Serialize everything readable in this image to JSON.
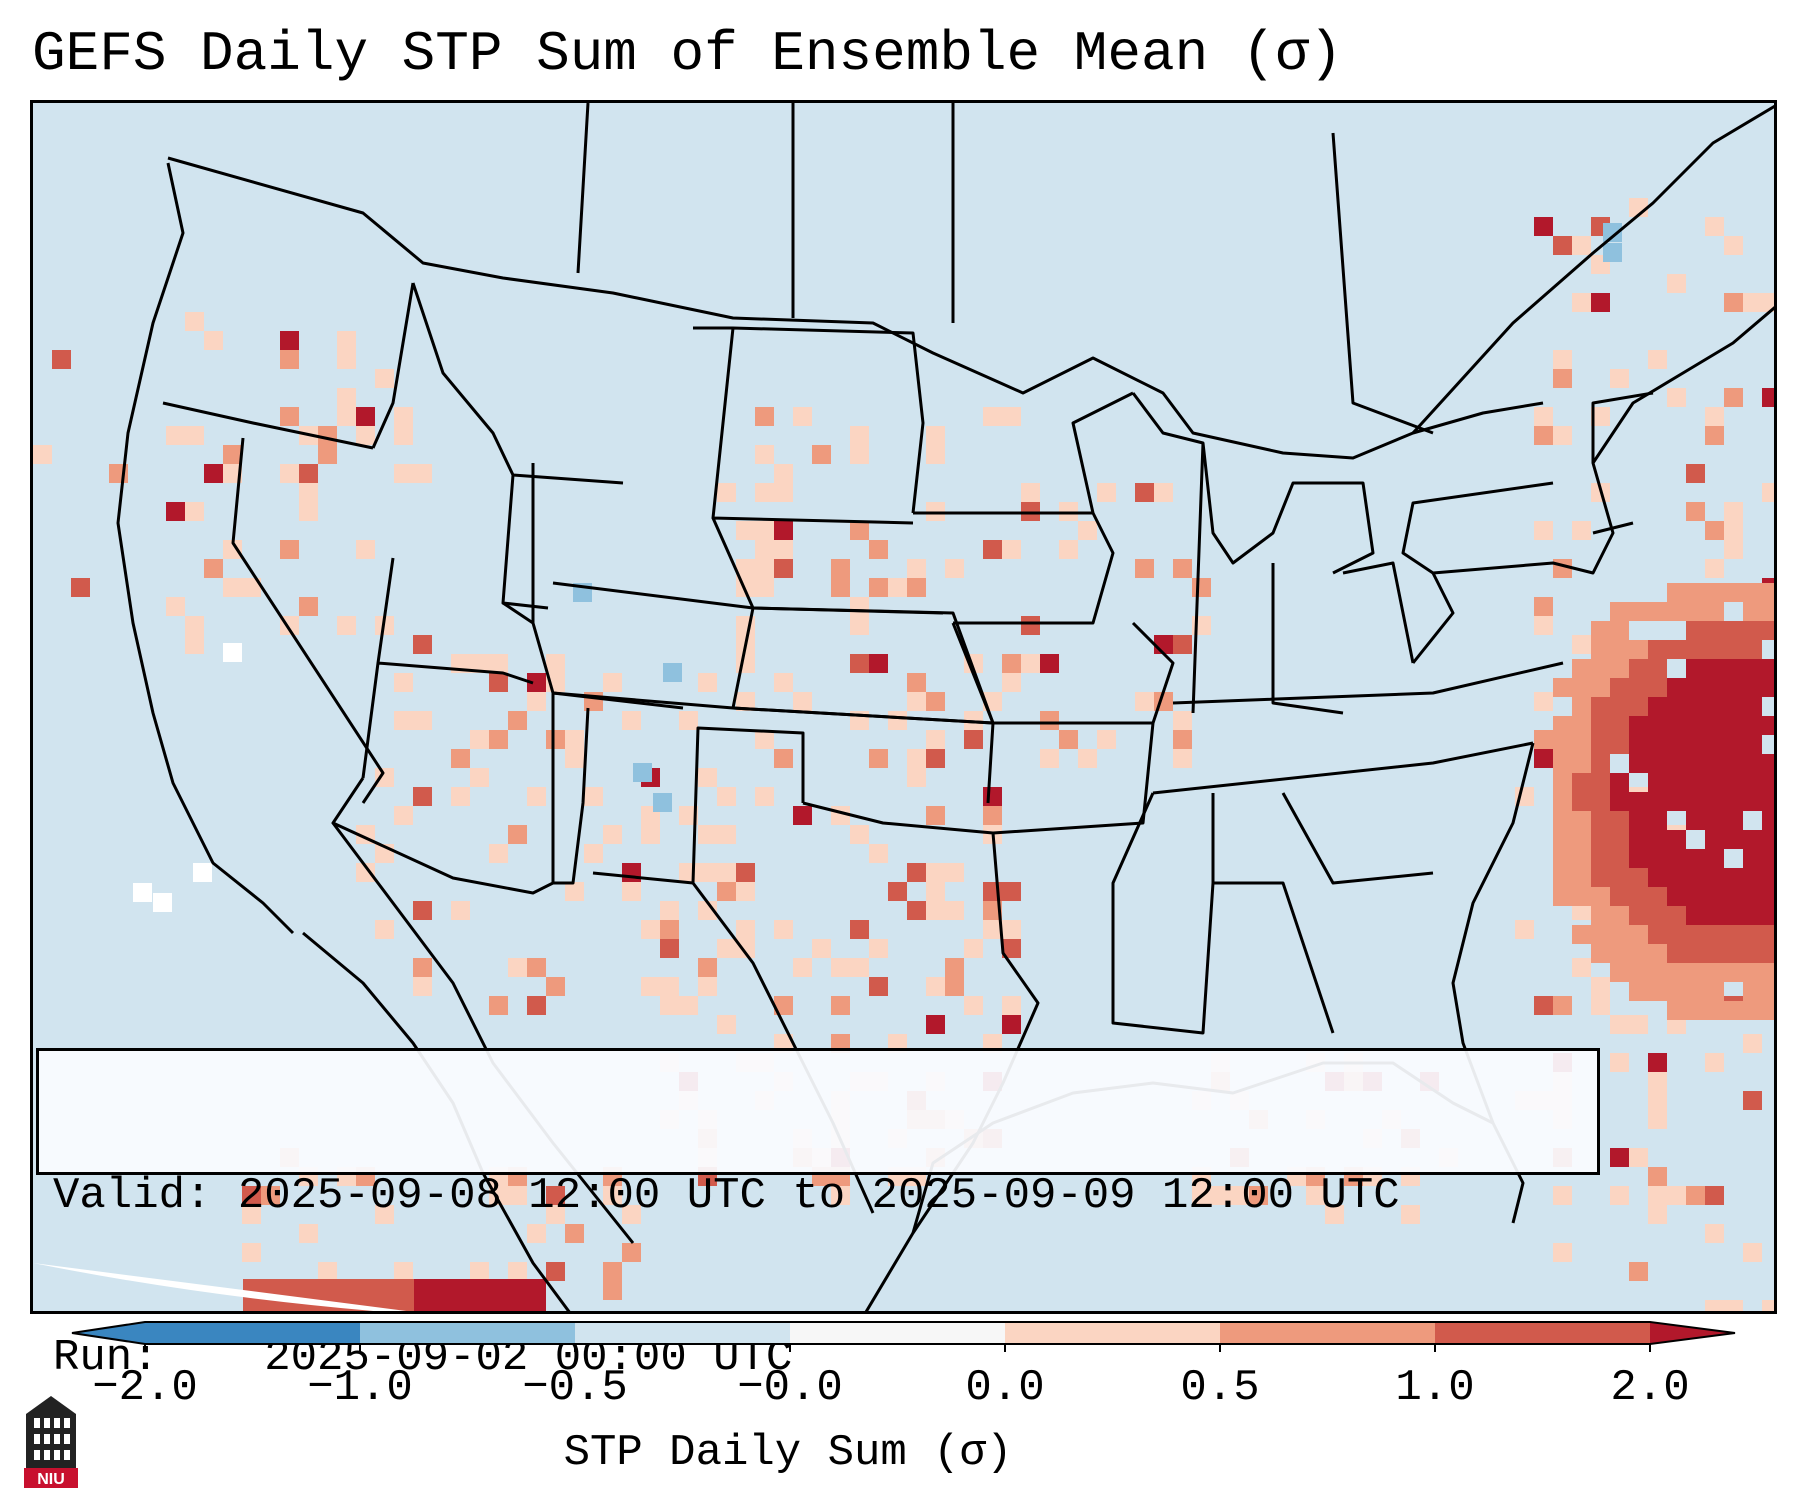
{
  "title": "GEFS Daily STP Sum of Ensemble Mean (σ)",
  "info": {
    "valid_label": "Valid:",
    "valid_value": "2025-09-08 12:00 UTC to 2025-09-09 12:00 UTC",
    "run_label": "Run:",
    "run_value": "2025-09-02 00:00 UTC"
  },
  "colorbar": {
    "label": "STP Daily Sum (σ)",
    "ticks": [
      "−2.0",
      "−1.0",
      "−0.5",
      "−0.0",
      "0.0",
      "0.5",
      "1.0",
      "2.0"
    ],
    "colors": [
      "#3a86c0",
      "#8fc1de",
      "#d1e4ef",
      "#f7f7f7",
      "#fbd5c2",
      "#ee9a7d",
      "#d15a4c",
      "#b2182b"
    ]
  },
  "map": {
    "background_color": "#d1e4ef",
    "anomaly_colors": {
      "light": "#fbd5c2",
      "medium": "#ee9a7d",
      "strong": "#d15a4c",
      "max": "#b2182b",
      "neg": "#8fc1de",
      "neutral": "#ffffff"
    }
  },
  "logo": {
    "text": "NIU"
  }
}
